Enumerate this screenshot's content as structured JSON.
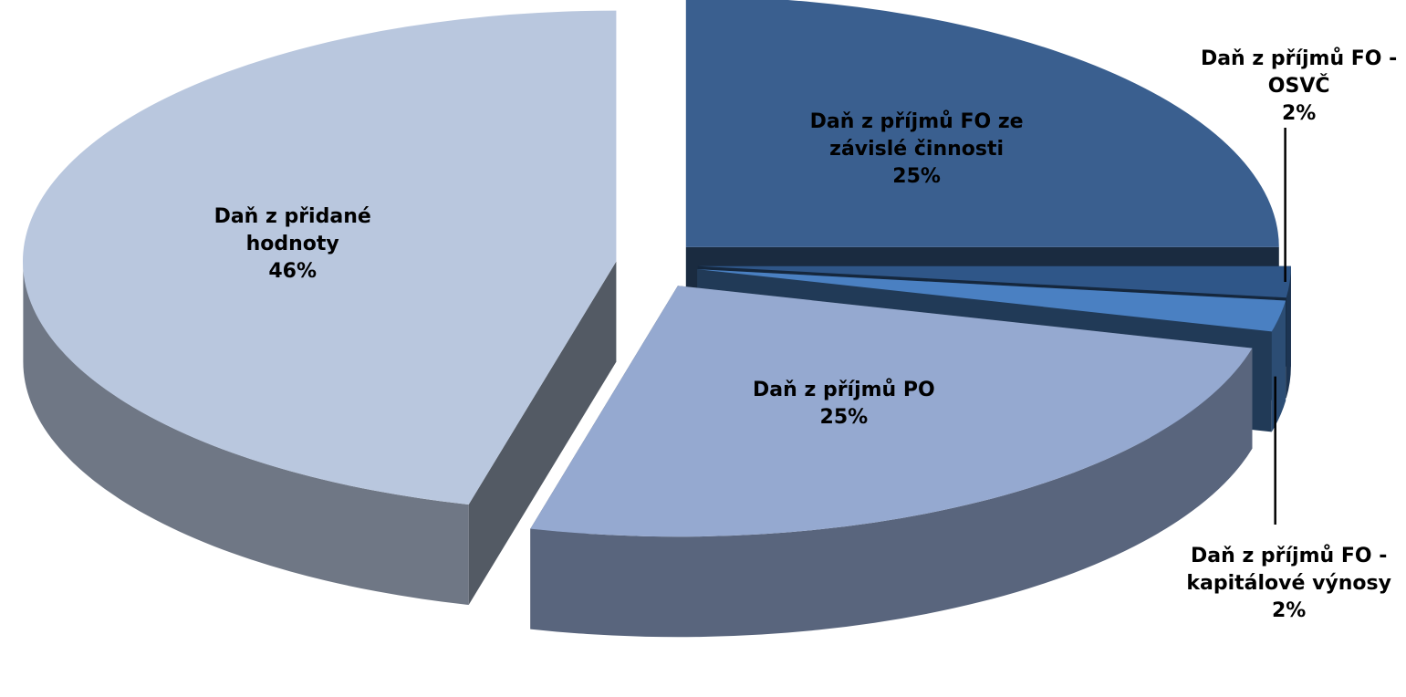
{
  "chart_data": {
    "type": "pie3d",
    "categories": [
      "Daň z příjmů FO ze závislé činnosti",
      "Daň z příjmů FO - OSVČ",
      "Daň z příjmů FO - kapitálové výnosy",
      "Daň z příjmů PO",
      "Daň z přidané hodnoty"
    ],
    "values": [
      25,
      2,
      2,
      25,
      46
    ],
    "value_labels": [
      "25%",
      "2%",
      "2%",
      "25%",
      "46%"
    ],
    "colors": [
      "#3a5f8f",
      "#2f5688",
      "#4a80c2",
      "#95a9d0",
      "#b9c7de"
    ]
  }
}
